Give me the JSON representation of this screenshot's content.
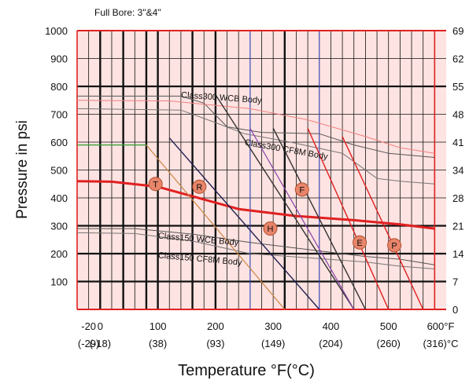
{
  "chart_data": {
    "type": "line",
    "subtitle": "Full Bore: 3\"&4\"",
    "title": "",
    "xlabel": "Temperature °F(°C)",
    "ylabel": "Pressure in psi",
    "xlim": [
      -40,
      600
    ],
    "ylim": [
      0,
      1000
    ],
    "y_left_ticks": [
      {
        "v": 1000,
        "t": "1000"
      },
      {
        "v": 900,
        "t": "900"
      },
      {
        "v": 800,
        "t": "800"
      },
      {
        "v": 700,
        "t": "700"
      },
      {
        "v": 600,
        "t": "600"
      },
      {
        "v": 500,
        "t": "500"
      },
      {
        "v": 400,
        "t": "400"
      },
      {
        "v": 300,
        "t": "300"
      },
      {
        "v": 200,
        "t": "200"
      },
      {
        "v": 100,
        "t": "100"
      }
    ],
    "y_right_ticks": [
      {
        "v": 1000,
        "t": "69"
      },
      {
        "v": 900,
        "t": "62"
      },
      {
        "v": 800,
        "t": "55"
      },
      {
        "v": 700,
        "t": "48"
      },
      {
        "v": 600,
        "t": "41"
      },
      {
        "v": 500,
        "t": "34"
      },
      {
        "v": 400,
        "t": "28"
      },
      {
        "v": 300,
        "t": "21"
      },
      {
        "v": 200,
        "t": "14"
      },
      {
        "v": 100,
        "t": "7"
      },
      {
        "v": 0,
        "t": "0"
      }
    ],
    "x_ticks": [
      {
        "v": -20,
        "f": "-20",
        "c": "(-29)"
      },
      {
        "v": 0,
        "f": "0",
        "c": "(-18)"
      },
      {
        "v": 100,
        "f": "100",
        "c": "(38)"
      },
      {
        "v": 200,
        "f": "200",
        "c": "(93)"
      },
      {
        "v": 300,
        "f": "300",
        "c": "(149)"
      },
      {
        "v": 400,
        "f": "400",
        "c": "(204)"
      },
      {
        "v": 500,
        "f": "500",
        "c": "(260)"
      },
      {
        "v": 600,
        "f": "600°F",
        "c": "(316)°C"
      }
    ],
    "grid_x": [
      -40,
      -20,
      0,
      20,
      40,
      60,
      80,
      100,
      120,
      140,
      160,
      180,
      200,
      220,
      240,
      260,
      280,
      300,
      320,
      340,
      360,
      380,
      400,
      420,
      440,
      460,
      480,
      500,
      520,
      540,
      560,
      580
    ],
    "grid_x_heavy": [
      0,
      40,
      80,
      100,
      160,
      200,
      320
    ],
    "grid_x_blue": [
      260,
      380
    ],
    "grid_x_red": [
      -40,
      580
    ],
    "grid_y": [
      100,
      200,
      300,
      400,
      500,
      600,
      700,
      800,
      900
    ],
    "grid_y_heavy": [
      100,
      200,
      300,
      800
    ],
    "grid_y_red": [
      0,
      1000
    ],
    "curves": [
      {
        "color": "#555555",
        "width": 1,
        "points": [
          [
            -40,
            765
          ],
          [
            140,
            765
          ],
          [
            180,
            740
          ],
          [
            220,
            655
          ],
          [
            280,
            635
          ],
          [
            380,
            630
          ],
          [
            440,
            590
          ],
          [
            500,
            560
          ],
          [
            580,
            545
          ]
        ]
      },
      {
        "color": "#777777",
        "width": 1,
        "points": [
          [
            -40,
            720
          ],
          [
            140,
            715
          ],
          [
            200,
            670
          ],
          [
            250,
            630
          ],
          [
            330,
            600
          ],
          [
            420,
            560
          ],
          [
            480,
            470
          ],
          [
            520,
            460
          ],
          [
            580,
            450
          ]
        ]
      },
      {
        "color": "#f08080",
        "width": 1,
        "points": [
          [
            -40,
            750
          ],
          [
            120,
            748
          ],
          [
            260,
            720
          ],
          [
            360,
            680
          ],
          [
            460,
            620
          ],
          [
            520,
            580
          ],
          [
            580,
            560
          ]
        ]
      },
      {
        "color": "#555555",
        "width": 1,
        "points": [
          [
            -40,
            290
          ],
          [
            60,
            290
          ],
          [
            160,
            270
          ],
          [
            260,
            240
          ],
          [
            360,
            215
          ],
          [
            460,
            190
          ],
          [
            520,
            180
          ],
          [
            580,
            160
          ]
        ]
      },
      {
        "color": "#777777",
        "width": 1,
        "points": [
          [
            -40,
            275
          ],
          [
            60,
            272
          ],
          [
            160,
            245
          ],
          [
            260,
            200
          ],
          [
            360,
            185
          ],
          [
            460,
            170
          ],
          [
            520,
            155
          ],
          [
            580,
            145
          ]
        ]
      },
      {
        "color": "#e02020",
        "width": 3,
        "points": [
          [
            -40,
            460
          ],
          [
            20,
            458
          ],
          [
            100,
            440
          ],
          [
            240,
            360
          ],
          [
            340,
            335
          ],
          [
            440,
            320
          ],
          [
            520,
            305
          ],
          [
            580,
            290
          ]
        ]
      },
      {
        "color": "#2e9e2e",
        "width": 1.2,
        "points": [
          [
            -40,
            590
          ],
          [
            80,
            590
          ]
        ]
      },
      {
        "color": "#cc8844",
        "width": 1.2,
        "points": [
          [
            80,
            590
          ],
          [
            320,
            0
          ]
        ]
      },
      {
        "color": "#202050",
        "width": 1.4,
        "points": [
          [
            120,
            615
          ],
          [
            380,
            0
          ]
        ]
      },
      {
        "color": "#333333",
        "width": 1.4,
        "points": [
          [
            200,
            770
          ],
          [
            440,
            0
          ]
        ]
      },
      {
        "color": "#333333",
        "width": 1.4,
        "points": [
          [
            300,
            650
          ],
          [
            460,
            0
          ]
        ]
      },
      {
        "color": "#8844aa",
        "width": 1.2,
        "points": [
          [
            260,
            650
          ],
          [
            440,
            0
          ]
        ]
      },
      {
        "color": "#e02020",
        "width": 1.4,
        "points": [
          [
            360,
            650
          ],
          [
            500,
            0
          ]
        ]
      },
      {
        "color": "#e02020",
        "width": 1.4,
        "points": [
          [
            420,
            620
          ],
          [
            560,
            0
          ]
        ]
      }
    ],
    "annotations": [
      {
        "x": 140,
        "y": 760,
        "text": "Class300 WCB Body",
        "rot": 4
      },
      {
        "x": 250,
        "y": 590,
        "text": "Class300 CF8M Body",
        "rot": 10
      },
      {
        "x": 100,
        "y": 255,
        "text": "Class150 WCB Body",
        "rot": 5
      },
      {
        "x": 100,
        "y": 185,
        "text": "Class150 CF8M Body",
        "rot": 5
      }
    ],
    "markers": [
      {
        "x": 96,
        "y": 450,
        "text": "T"
      },
      {
        "x": 172,
        "y": 440,
        "text": "R"
      },
      {
        "x": 295,
        "y": 290,
        "text": "H"
      },
      {
        "x": 350,
        "y": 430,
        "text": "F"
      },
      {
        "x": 450,
        "y": 240,
        "text": "E"
      },
      {
        "x": 510,
        "y": 230,
        "text": "P"
      }
    ]
  }
}
